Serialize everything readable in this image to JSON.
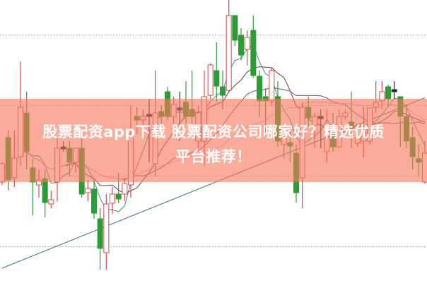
{
  "banner": {
    "line1": "股票配资app下载 股票配资公司哪家好？精选优质",
    "line2": "平台推荐！"
  },
  "colors": {
    "up": "#d9484a",
    "down": "#2a9d34",
    "doji": "#1a2a3a",
    "banner": "#f8785a",
    "ma": [
      "#3a8e9a",
      "#6b3a3a",
      "#7a4a8a",
      "#e8a0e0",
      "#3a7a8a"
    ]
  },
  "chart_data": {
    "type": "candlestick",
    "title": "",
    "ylim": [
      0,
      40
    ],
    "grid": "dotted-horizontal",
    "moving_averages": [
      5,
      10,
      20,
      30,
      60
    ],
    "candles_ohlc": [
      [
        14.2,
        17.0,
        13.8,
        16.8
      ],
      [
        20.5,
        21.5,
        13.0,
        14.5
      ],
      [
        14.8,
        21.5,
        13.5,
        17.6
      ],
      [
        17.8,
        31.3,
        16.5,
        24.8
      ],
      [
        24.0,
        27.0,
        16.0,
        18.5
      ],
      [
        16.2,
        17.5,
        9.5,
        14.2
      ],
      [
        13.8,
        16.0,
        12.0,
        14.5
      ],
      [
        14.7,
        16.0,
        9.2,
        11.3
      ],
      [
        11.1,
        13.0,
        10.5,
        11.7
      ],
      [
        14.2,
        20.5,
        11.5,
        19.0
      ],
      [
        19.2,
        20.0,
        18.5,
        18.9
      ],
      [
        19.0,
        20.0,
        15.0,
        17.0
      ],
      [
        17.0,
        19.0,
        15.5,
        19.0
      ],
      [
        19.0,
        21.0,
        12.0,
        12.5
      ],
      [
        12.7,
        14.5,
        11.5,
        13.3
      ],
      [
        13.2,
        14.5,
        9.0,
        9.8
      ],
      [
        9.0,
        10.5,
        1.8,
        4.8
      ],
      [
        4.2,
        12.5,
        1.8,
        11.1
      ],
      [
        11.2,
        13.5,
        9.7,
        12.5
      ],
      [
        12.5,
        15.5,
        11.2,
        11.8
      ],
      [
        12.5,
        14.8,
        11.5,
        14.0
      ],
      [
        13.8,
        25.0,
        12.0,
        21.0
      ],
      [
        23.5,
        24.8,
        21.0,
        23.0
      ],
      [
        23.0,
        24.5,
        21.0,
        23.5
      ],
      [
        23.5,
        26.0,
        17.0,
        23.8
      ],
      [
        16.8,
        30.0,
        15.0,
        24.0
      ],
      [
        24.2,
        25.0,
        22.5,
        23.5
      ],
      [
        27.0,
        27.7,
        23.0,
        23.5
      ],
      [
        23.5,
        26.3,
        22.5,
        25.2
      ],
      [
        24.7,
        27.0,
        20.0,
        24.4
      ],
      [
        25.5,
        28.5,
        22.5,
        23.5
      ],
      [
        24.5,
        30.0,
        22.5,
        23.5
      ],
      [
        20.0,
        25.0,
        19.0,
        24.0
      ],
      [
        20.0,
        30.0,
        16.5,
        26.3
      ],
      [
        26.5,
        31.0,
        26.0,
        30.8
      ],
      [
        30.0,
        34.0,
        25.5,
        27.8
      ],
      [
        27.7,
        30.0,
        24.5,
        26.5
      ],
      [
        27.2,
        40.0,
        27.0,
        37.8
      ],
      [
        37.8,
        37.8,
        33.5,
        34.3
      ],
      [
        35.0,
        36.0,
        31.5,
        32.2
      ],
      [
        33.0,
        35.7,
        30.7,
        34.7
      ],
      [
        35.7,
        37.8,
        29.0,
        29.3
      ],
      [
        29.2,
        30.0,
        23.5,
        25.7
      ],
      [
        26.3,
        27.5,
        21.0,
        25.7
      ],
      [
        25.7,
        30.5,
        25.0,
        30.0
      ],
      [
        26.3,
        28.5,
        19.2,
        20.0
      ],
      [
        19.5,
        21.5,
        17.5,
        20.5
      ],
      [
        19.8,
        21.5,
        17.0,
        19.3
      ],
      [
        18.3,
        19.5,
        11.3,
        12.7
      ],
      [
        14.8,
        25.5,
        10.5,
        24.8
      ],
      [
        24.8,
        26.3,
        22.0,
        23.3
      ],
      [
        22.2,
        24.0,
        19.0,
        23.5
      ],
      [
        23.5,
        24.5,
        19.0,
        23.2
      ],
      [
        18.5,
        24.5,
        17.0,
        20.5
      ],
      [
        21.3,
        24.0,
        18.5,
        19.2
      ],
      [
        19.2,
        24.5,
        19.0,
        23.5
      ],
      [
        23.5,
        24.5,
        23.0,
        24.0
      ],
      [
        22.7,
        27.0,
        19.0,
        22.2
      ],
      [
        19.7,
        20.5,
        19.2,
        20.5
      ],
      [
        20.0,
        24.8,
        17.7,
        21.3
      ],
      [
        20.0,
        24.7,
        19.5,
        24.7
      ],
      [
        24.8,
        28.5,
        24.0,
        25.5
      ],
      [
        25.7,
        28.5,
        24.5,
        27.0
      ],
      [
        27.7,
        28.0,
        25.0,
        26.0
      ],
      [
        27.0,
        28.5,
        26.0,
        27.3
      ],
      [
        26.3,
        26.3,
        19.2,
        23.5
      ],
      [
        23.5,
        25.2,
        19.0,
        20.0
      ],
      [
        20.5,
        22.0,
        16.0,
        17.8
      ],
      [
        17.5,
        19.5,
        15.0,
        17.0
      ],
      [
        14.2,
        20.0,
        14.0,
        18.3
      ]
    ]
  }
}
